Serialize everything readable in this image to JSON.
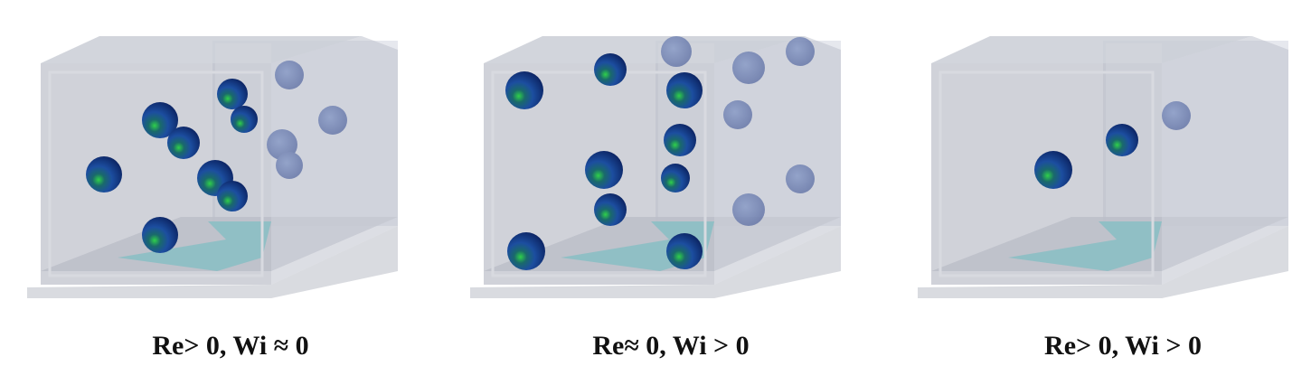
{
  "panels": [
    {
      "label": "Re> 0, Wi ≈ 0"
    },
    {
      "label": "Re≈ 0, Wi > 0"
    },
    {
      "label": "Re> 0, Wi > 0"
    }
  ]
}
